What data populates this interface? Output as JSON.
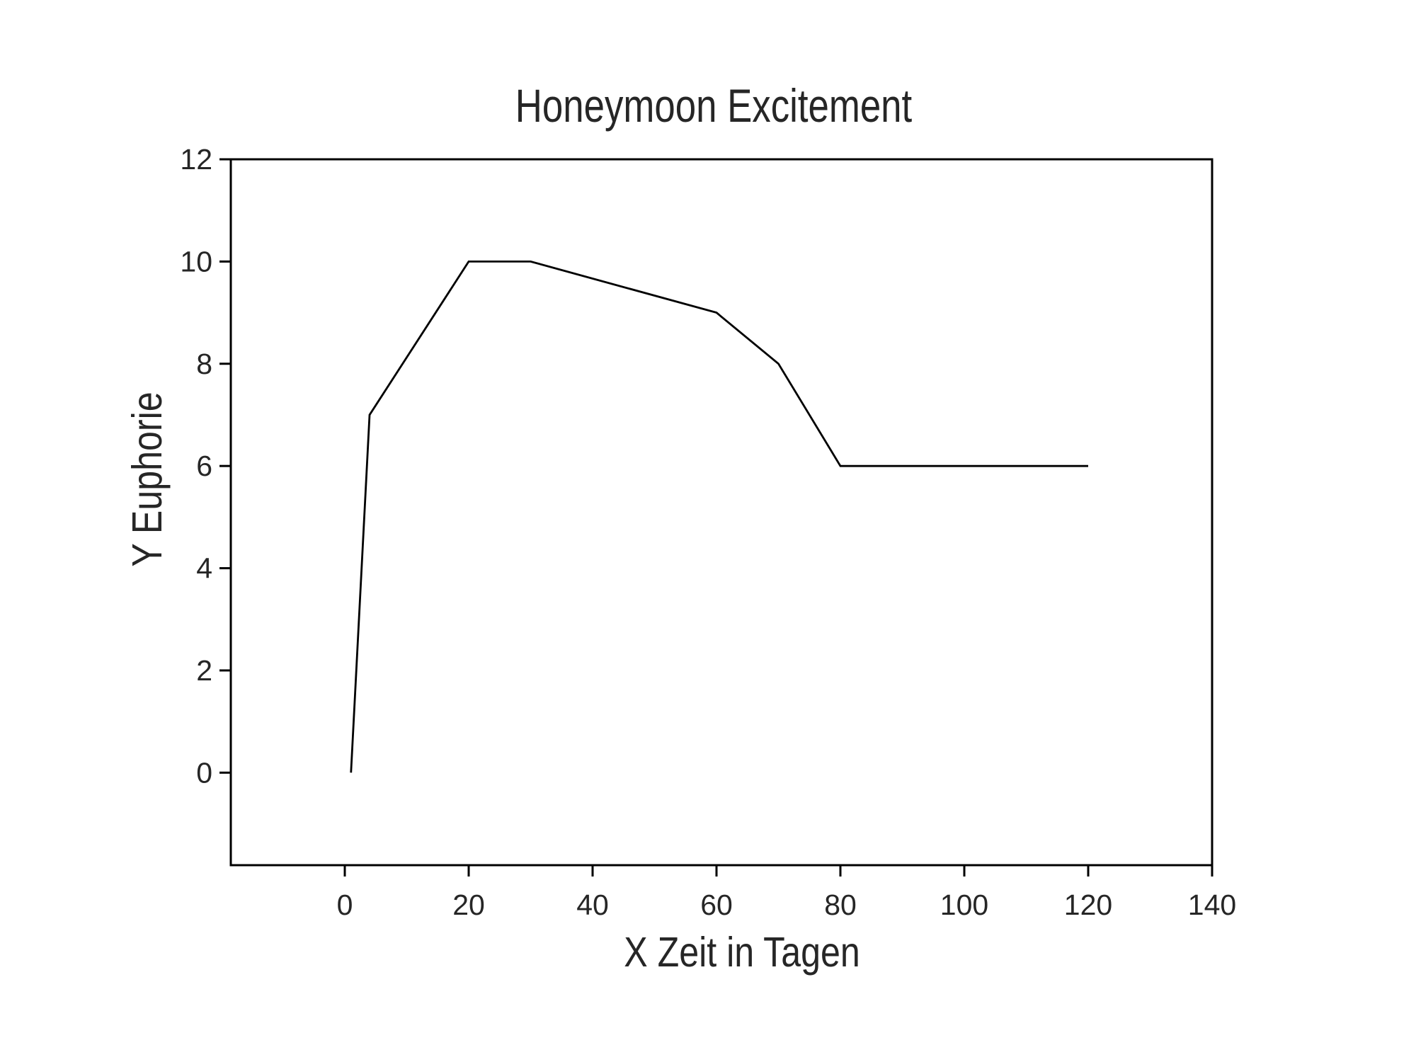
{
  "page": {
    "background_color": "#ffffff"
  },
  "chart_data": {
    "type": "line",
    "title": "Honeymoon Excitement",
    "xlabel": "X Zeit in Tagen",
    "ylabel": "Y Euphorie",
    "series": [
      {
        "name": "Euphorie",
        "color": "#000000",
        "points": [
          {
            "x": 1,
            "y": 0
          },
          {
            "x": 4,
            "y": 7
          },
          {
            "x": 20,
            "y": 10
          },
          {
            "x": 30,
            "y": 10
          },
          {
            "x": 60,
            "y": 9
          },
          {
            "x": 70,
            "y": 8
          },
          {
            "x": 80,
            "y": 6
          },
          {
            "x": 120,
            "y": 6
          }
        ]
      }
    ],
    "xticks": [
      0,
      20,
      40,
      60,
      80,
      100,
      120,
      140
    ],
    "yticks": [
      0,
      2,
      4,
      6,
      8,
      10,
      12
    ],
    "xlim": [
      -18.4,
      140
    ],
    "ylim": [
      -1.81,
      12
    ],
    "grid": false,
    "legend_position": "none",
    "marker": "none",
    "axis_color": "#000000",
    "text_color": "#262626",
    "plot_border": "full-box"
  }
}
